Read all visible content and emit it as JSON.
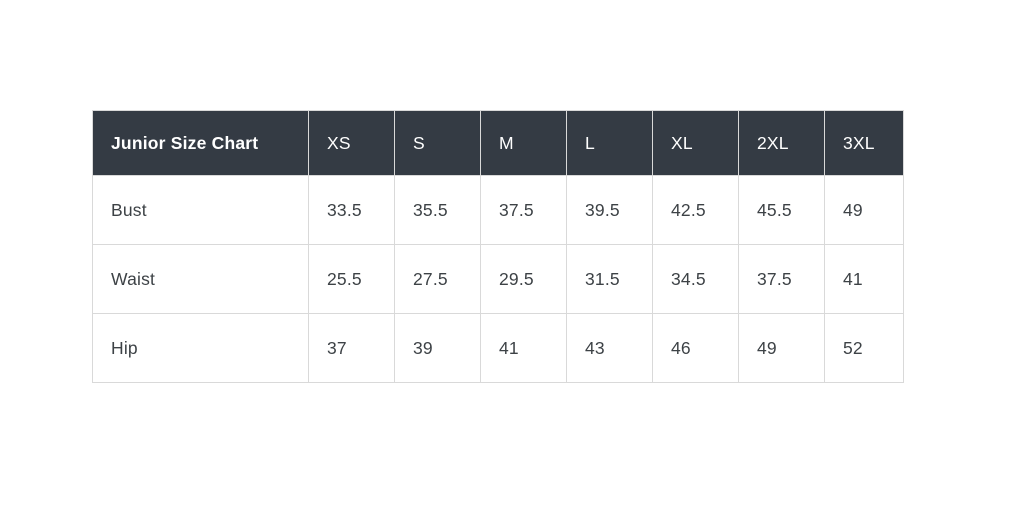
{
  "colors": {
    "page_background": "#ffffff",
    "header_background": "#343b44",
    "header_text": "#ffffff",
    "body_text": "#3d4246",
    "cell_border": "#d9d9d9"
  },
  "table": {
    "title": "Junior Size Chart",
    "columns": [
      "XS",
      "S",
      "M",
      "L",
      "XL",
      "2XL",
      "3XL"
    ],
    "rows": [
      {
        "label": "Bust",
        "values": [
          "33.5",
          "35.5",
          "37.5",
          "39.5",
          "42.5",
          "45.5",
          "49"
        ]
      },
      {
        "label": "Waist",
        "values": [
          "25.5",
          "27.5",
          "29.5",
          "31.5",
          "34.5",
          "37.5",
          "41"
        ]
      },
      {
        "label": "Hip",
        "values": [
          "37",
          "39",
          "41",
          "43",
          "46",
          "49",
          "52"
        ]
      }
    ]
  },
  "chart_data": {
    "type": "table",
    "title": "Junior Size Chart",
    "columns": [
      "XS",
      "S",
      "M",
      "L",
      "XL",
      "2XL",
      "3XL"
    ],
    "rows": [
      {
        "measurement": "Bust",
        "values": [
          33.5,
          35.5,
          37.5,
          39.5,
          42.5,
          45.5,
          49
        ]
      },
      {
        "measurement": "Waist",
        "values": [
          25.5,
          27.5,
          29.5,
          31.5,
          34.5,
          37.5,
          41
        ]
      },
      {
        "measurement": "Hip",
        "values": [
          37,
          39,
          41,
          43,
          46,
          49,
          52
        ]
      }
    ]
  }
}
